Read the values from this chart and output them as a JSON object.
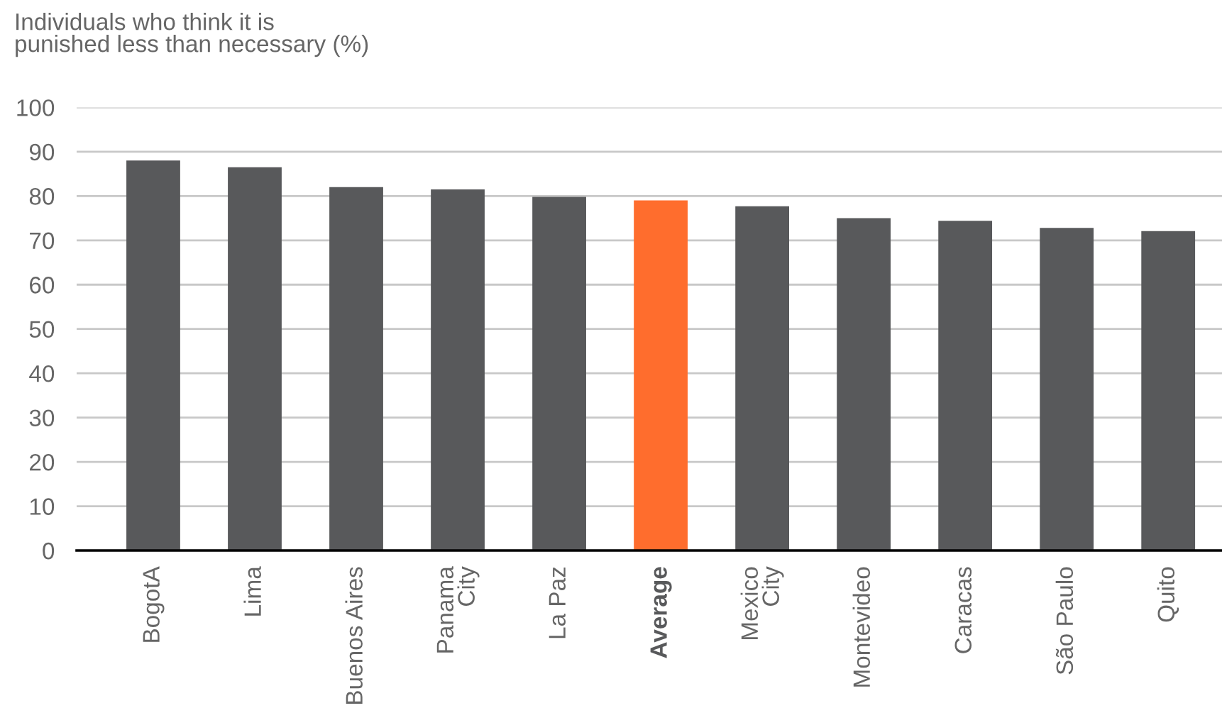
{
  "chart_data": {
    "type": "bar",
    "ylabel": "Individuals who think it is\npunished less than necessary (%)",
    "categories": [
      "BogotA",
      "Lima",
      "Buenos Aires",
      "Panama\nCity",
      "La Paz",
      "Average",
      "Mexico\nCity",
      "Montevideo",
      "Caracas",
      "São Paulo",
      "Quito"
    ],
    "values": [
      88,
      86.5,
      82,
      81.5,
      79.8,
      79,
      77.7,
      75,
      74.4,
      72.8,
      72.1
    ],
    "colors": [
      "#58595b",
      "#58595b",
      "#58595b",
      "#58595b",
      "#58595b",
      "#ff6d2d",
      "#58595b",
      "#58595b",
      "#58595b",
      "#58595b",
      "#58595b"
    ],
    "ylim": [
      0,
      100
    ],
    "yticks": [
      0,
      10,
      20,
      30,
      40,
      50,
      60,
      70,
      80,
      90,
      100
    ],
    "grid": "y"
  }
}
